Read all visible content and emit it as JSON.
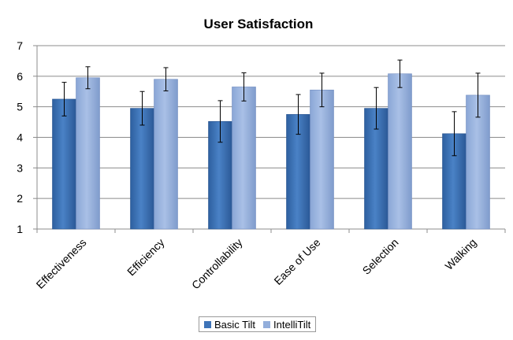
{
  "chart_data": {
    "type": "bar",
    "title": "User Satisfaction",
    "categories": [
      "Effectiveness",
      "Efficiency",
      "Controllability",
      "Ease of Use",
      "Selection",
      "Walking"
    ],
    "series": [
      {
        "name": "Basic Tilt",
        "color": "#3e74b8",
        "values": [
          5.25,
          4.95,
          4.52,
          4.75,
          4.95,
          4.12
        ],
        "errors": [
          0.55,
          0.55,
          0.68,
          0.65,
          0.68,
          0.72
        ]
      },
      {
        "name": "IntelliTilt",
        "color": "#93aedb",
        "values": [
          5.95,
          5.9,
          5.65,
          5.55,
          6.08,
          5.38
        ],
        "errors": [
          0.36,
          0.38,
          0.46,
          0.55,
          0.45,
          0.72
        ]
      }
    ],
    "ylim": [
      1,
      7
    ],
    "yticks": [
      "1",
      "2",
      "3",
      "4",
      "5",
      "6",
      "7"
    ],
    "xlabel": "",
    "ylabel": "",
    "grid": true,
    "legend_position": "bottom"
  }
}
